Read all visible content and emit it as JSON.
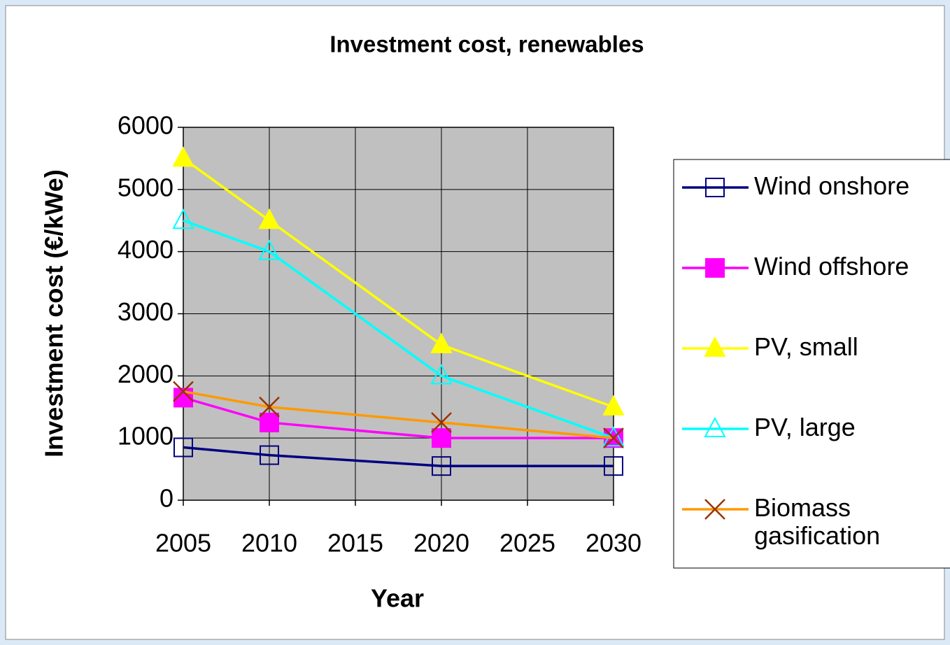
{
  "chart_data": {
    "type": "line",
    "title": "Investment cost, renewables",
    "x_label": "Year",
    "y_label": "Investment cost (€/kWe)",
    "x": [
      2005,
      2010,
      2020,
      2030
    ],
    "xlim": [
      2005,
      2030
    ],
    "xticks": [
      2005,
      2010,
      2015,
      2020,
      2025,
      2030
    ],
    "ylim": [
      0,
      6000
    ],
    "yticks": [
      0,
      1000,
      2000,
      3000,
      4000,
      5000,
      6000
    ],
    "grid": true,
    "plot_background": "#c0c0c0",
    "legend": "right",
    "series": [
      {
        "name": "Wind onshore",
        "color": "#000080",
        "marker": "square",
        "marker_color": "#000080",
        "marker_filled": false,
        "values": [
          850,
          725,
          550,
          550
        ]
      },
      {
        "name": "Wind offshore",
        "color": "#ff00ff",
        "marker": "square",
        "marker_color": "#ff00ff",
        "marker_filled": true,
        "values": [
          1650,
          1250,
          1000,
          1000
        ]
      },
      {
        "name": "PV, small",
        "color": "#ffff00",
        "marker": "triangle",
        "marker_color": "#ffff00",
        "marker_filled": true,
        "values": [
          5500,
          4500,
          2500,
          1500
        ]
      },
      {
        "name": "PV, large",
        "color": "#00ffff",
        "marker": "triangle",
        "marker_color": "#00ffff",
        "marker_filled": false,
        "values": [
          4500,
          4000,
          2000,
          1000
        ]
      },
      {
        "name": "Biomass gasification",
        "color": "#ff9900",
        "marker": "x",
        "marker_color": "#993300",
        "marker_filled": false,
        "values": [
          1750,
          1500,
          1250,
          1000
        ]
      }
    ]
  }
}
